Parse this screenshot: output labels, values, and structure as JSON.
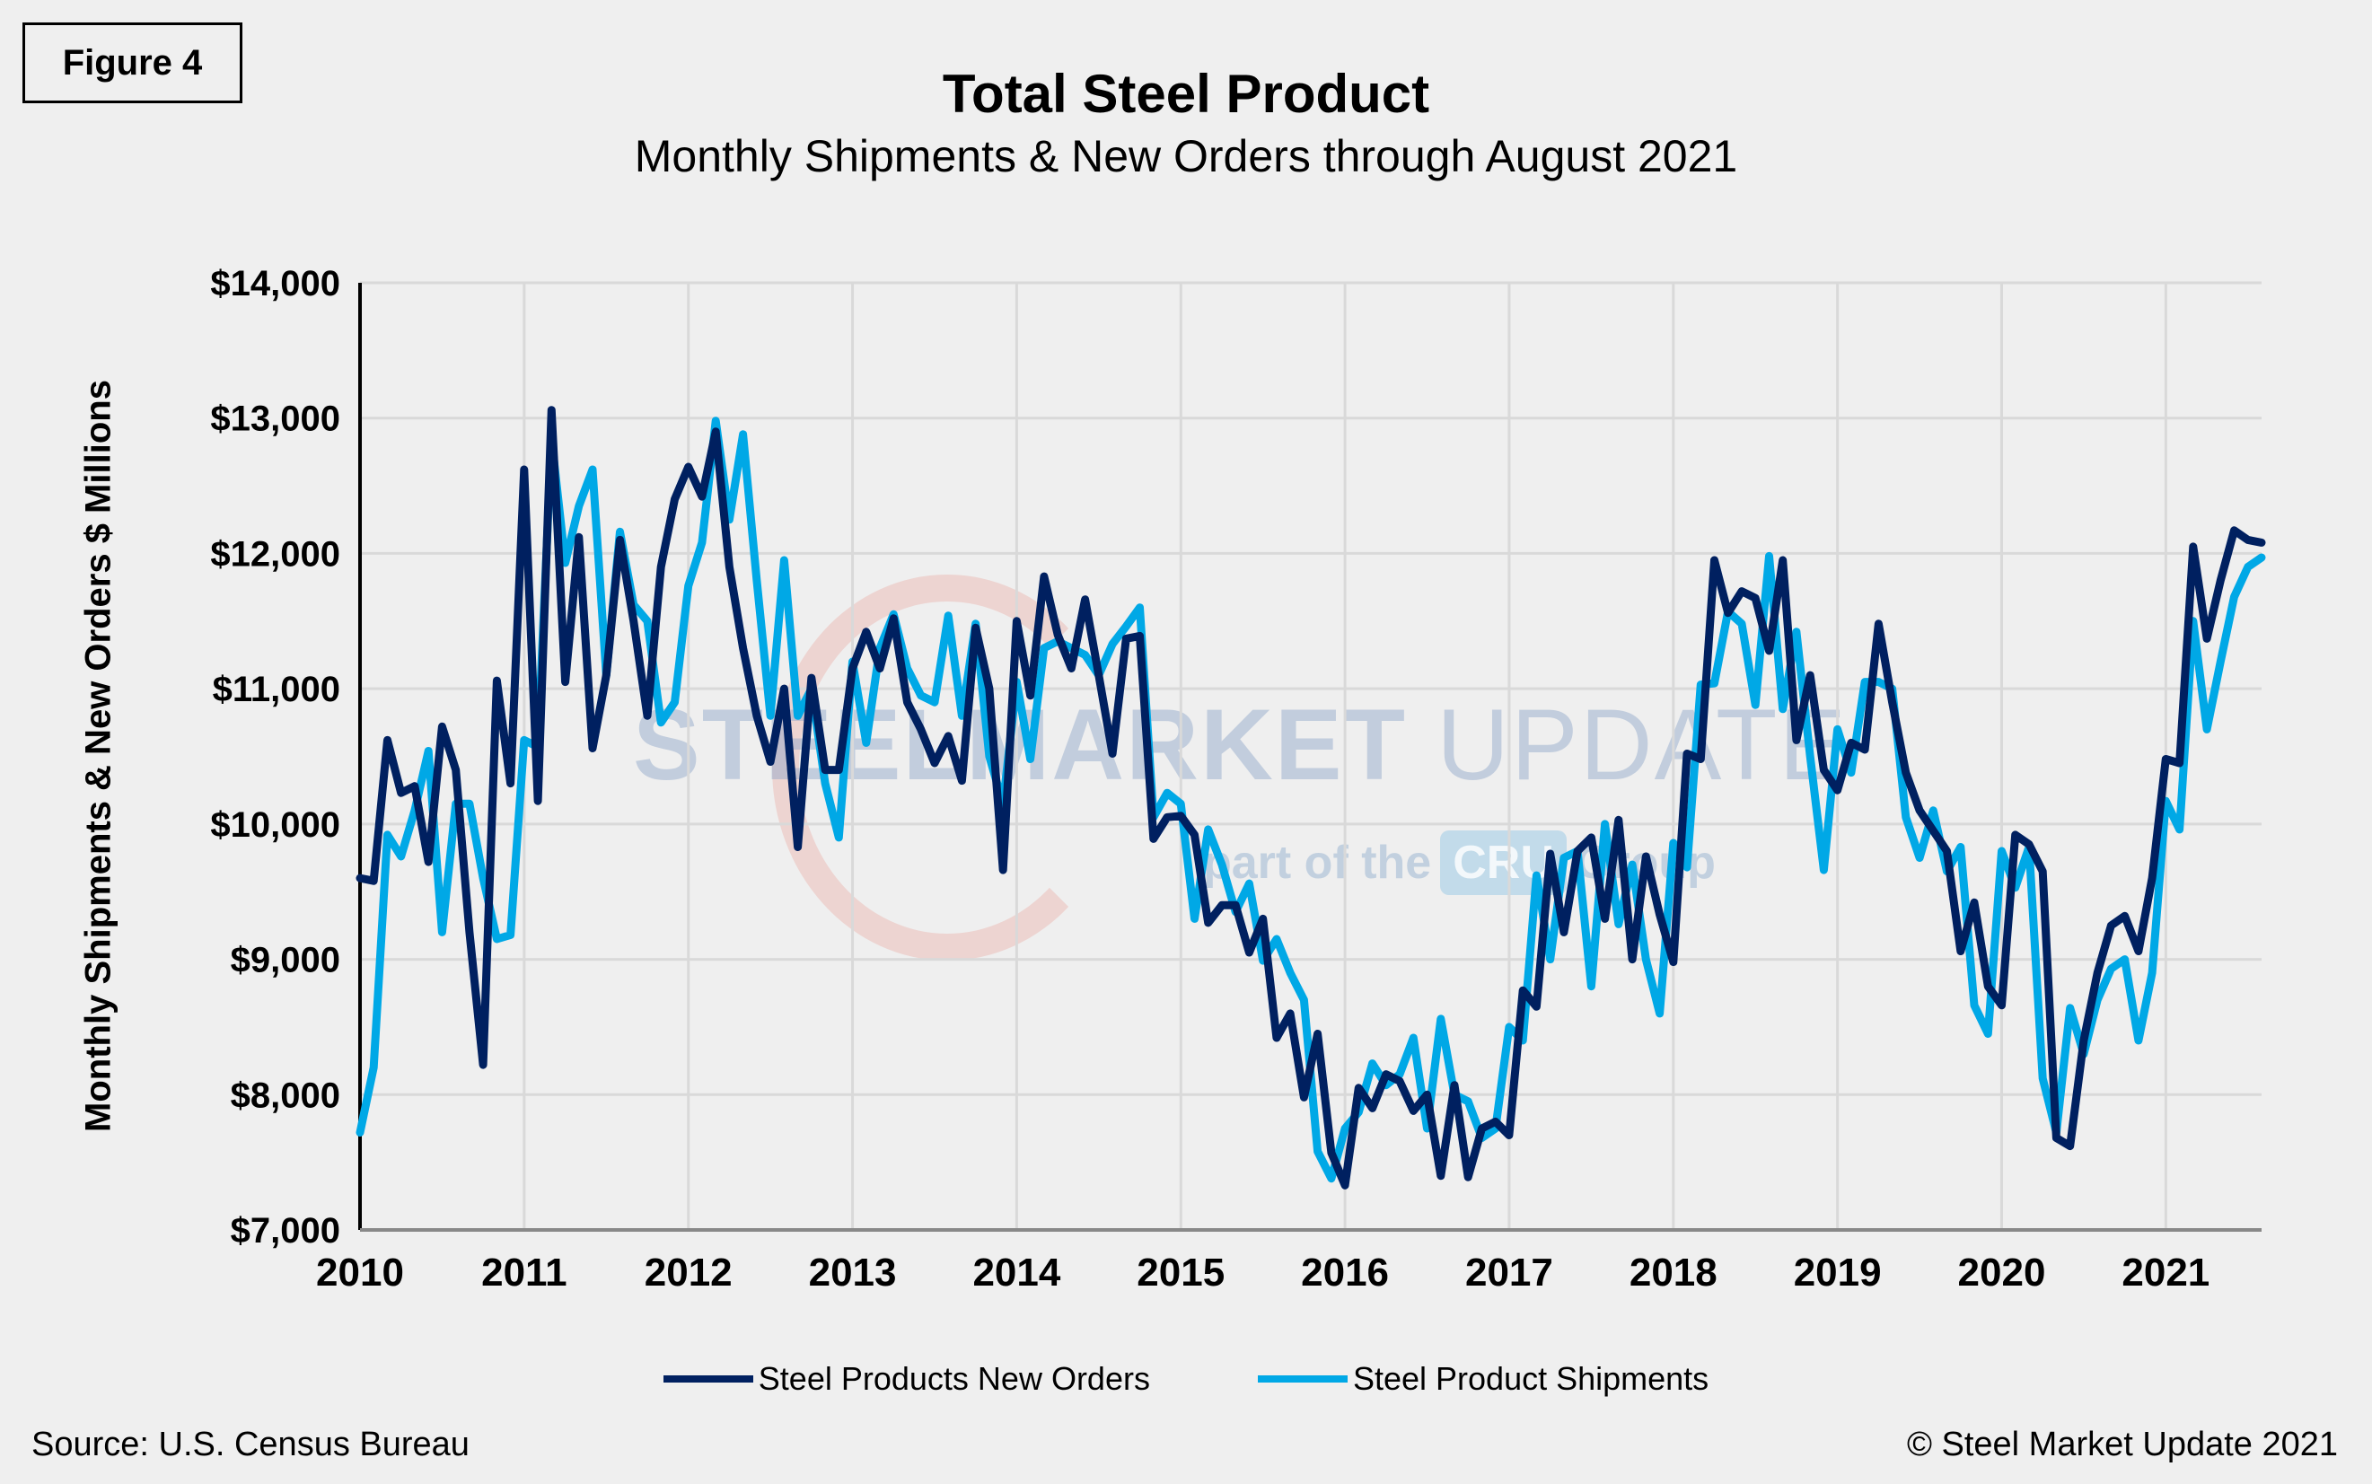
{
  "figure_label": "Figure 4",
  "watermark": {
    "brand_bold": "STEEL",
    "brand_mid": "MARKET",
    "brand_light": " UPDATE",
    "tagline_pre": "part of the",
    "tagline_logo": "CRU",
    "tagline_post": "Group"
  },
  "source": "Source: U.S. Census Bureau",
  "copyright": "© Steel Market Update 2021",
  "colors": {
    "new_orders": "#002060",
    "shipments": "#00a8e6",
    "grid": "#d9d9d9",
    "background": "#efefef"
  },
  "chart_data": {
    "type": "line",
    "title": "Total Steel Product",
    "subtitle": "Monthly Shipments & New Orders through August 2021",
    "xlabel": "",
    "ylabel": "Monthly Shipments & New Orders $ Millions",
    "start": "2010-01",
    "end": "2021-08",
    "frequency": "monthly",
    "ylim": [
      7000,
      14000
    ],
    "yticks": [
      7000,
      8000,
      9000,
      10000,
      11000,
      12000,
      13000,
      14000
    ],
    "ytick_labels": [
      "$7,000",
      "$8,000",
      "$9,000",
      "$10,000",
      "$11,000",
      "$12,000",
      "$13,000",
      "$14,000"
    ],
    "xtick_labels": [
      "2010",
      "2011",
      "2012",
      "2013",
      "2014",
      "2015",
      "2016",
      "2017",
      "2018",
      "2019",
      "2020",
      "2021"
    ],
    "grid": true,
    "legend_position": "bottom",
    "series": [
      {
        "name": "Steel Products New Orders",
        "values": [
          9600,
          9580,
          10620,
          10230,
          10280,
          9720,
          10720,
          10400,
          9200,
          8220,
          11060,
          10300,
          12620,
          10170,
          13060,
          11050,
          12120,
          10560,
          11100,
          12100,
          11500,
          10800,
          11900,
          12400,
          12640,
          12420,
          12900,
          11900,
          11300,
          10800,
          10460,
          11000,
          9830,
          11080,
          10400,
          10400,
          11150,
          11420,
          11150,
          11520,
          10900,
          10700,
          10450,
          10650,
          10320,
          11450,
          11000,
          9660,
          11500,
          10950,
          11830,
          11400,
          11150,
          11660,
          11100,
          10520,
          11370,
          11390,
          9890,
          10050,
          10060,
          9920,
          9270,
          9400,
          9400,
          9050,
          9300,
          8420,
          8600,
          7980,
          8450,
          7570,
          7330,
          8050,
          7900,
          8150,
          8100,
          7880,
          8000,
          7400,
          8070,
          7390,
          7750,
          7800,
          7700,
          8770,
          8650,
          9780,
          9200,
          9800,
          9900,
          9300,
          10030,
          9000,
          9760,
          9330,
          8980,
          10520,
          10480,
          11950,
          11560,
          11720,
          11670,
          11280,
          11950,
          10620,
          11100,
          10400,
          10250,
          10600,
          10550,
          11480,
          10900,
          10380,
          10100,
          9950,
          9800,
          9060,
          9420,
          8800,
          8660,
          9920,
          9850,
          9650,
          7680,
          7620,
          8400,
          8900,
          9250,
          9320,
          9060,
          9600,
          10480,
          10450,
          12050,
          11370,
          11800,
          12170,
          12100,
          12080
        ]
      },
      {
        "name": "Steel Product Shipments",
        "values": [
          7720,
          8200,
          9920,
          9760,
          10100,
          10540,
          9200,
          10150,
          10150,
          9600,
          9150,
          9180,
          10620,
          10570,
          12850,
          11930,
          12350,
          12620,
          11100,
          12160,
          11620,
          11500,
          10750,
          10900,
          11760,
          12080,
          12980,
          12250,
          12880,
          11800,
          10800,
          11950,
          10800,
          11000,
          10300,
          9900,
          11200,
          10600,
          11300,
          11550,
          11150,
          10950,
          10900,
          11540,
          10800,
          11480,
          10500,
          10150,
          11050,
          10480,
          11300,
          11350,
          11300,
          11250,
          11100,
          11330,
          11460,
          11600,
          10050,
          10230,
          10150,
          9300,
          9960,
          9700,
          9350,
          9560,
          8990,
          9150,
          8900,
          8700,
          7580,
          7380,
          7750,
          7870,
          8230,
          8070,
          8150,
          8420,
          7750,
          8560,
          8000,
          7950,
          7680,
          7750,
          8500,
          8400,
          9620,
          9000,
          9750,
          9800,
          8800,
          10000,
          9260,
          9700,
          9000,
          8600,
          9860,
          9680,
          11030,
          11040,
          11570,
          11480,
          10880,
          11980,
          10850,
          11420,
          10500,
          9660,
          10700,
          10380,
          11050,
          11050,
          11000,
          10050,
          9750,
          10100,
          9650,
          9830,
          8660,
          8450,
          9800,
          9530,
          9830,
          8120,
          7720,
          8640,
          8300,
          8700,
          8930,
          9000,
          8400,
          8900,
          10170,
          9960,
          11500,
          10700,
          11200,
          11680,
          11900,
          11970
        ]
      }
    ]
  }
}
